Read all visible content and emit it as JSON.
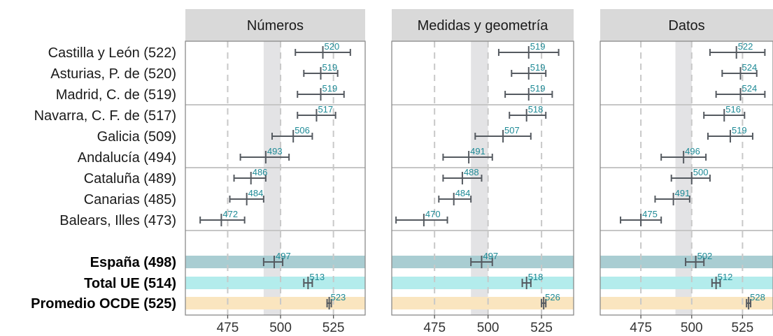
{
  "chart_data": {
    "type": "forest",
    "rows": [
      {
        "label": "Castilla y León (522)",
        "bold": false
      },
      {
        "label": "Asturias, P. de (520)",
        "bold": false
      },
      {
        "label": "Madrid, C. de (519)",
        "bold": false
      },
      {
        "label": "Navarra, C. F. de (517)",
        "bold": false
      },
      {
        "label": "Galicia (509)",
        "bold": false
      },
      {
        "label": "Andalucía (494)",
        "bold": false
      },
      {
        "label": "Cataluña (489)",
        "bold": false
      },
      {
        "label": "Canarias (485)",
        "bold": false
      },
      {
        "label": "Balears, Illes (473)",
        "bold": false
      },
      {
        "label": "España (498)",
        "bold": true,
        "band": "#a9cdd2"
      },
      {
        "label": "Total UE (514)",
        "bold": true,
        "band": "#b3ecec"
      },
      {
        "label": "Promedio OCDE (525)",
        "bold": true,
        "band": "#fae5bf"
      }
    ],
    "xlim": [
      455,
      540
    ],
    "xticks": [
      475,
      500,
      525
    ],
    "ref_band": [
      492,
      500
    ],
    "panels": [
      {
        "title": "Números",
        "points": [
          {
            "v": 520,
            "lo": 507,
            "hi": 533
          },
          {
            "v": 519,
            "lo": 511,
            "hi": 527
          },
          {
            "v": 519,
            "lo": 508,
            "hi": 530
          },
          {
            "v": 517,
            "lo": 508,
            "hi": 526
          },
          {
            "v": 506,
            "lo": 496,
            "hi": 515
          },
          {
            "v": 493,
            "lo": 481,
            "hi": 504
          },
          {
            "v": 486,
            "lo": 478,
            "hi": 493
          },
          {
            "v": 484,
            "lo": 476,
            "hi": 492
          },
          {
            "v": 472,
            "lo": 462,
            "hi": 483
          },
          {
            "v": 497,
            "lo": 492,
            "hi": 501
          },
          {
            "v": 513,
            "lo": 511,
            "hi": 515
          },
          {
            "v": 523,
            "lo": 522,
            "hi": 524
          }
        ]
      },
      {
        "title": "Medidas y geometría",
        "points": [
          {
            "v": 519,
            "lo": 505,
            "hi": 533
          },
          {
            "v": 519,
            "lo": 511,
            "hi": 527
          },
          {
            "v": 519,
            "lo": 508,
            "hi": 530
          },
          {
            "v": 518,
            "lo": 510,
            "hi": 527
          },
          {
            "v": 507,
            "lo": 494,
            "hi": 520
          },
          {
            "v": 491,
            "lo": 479,
            "hi": 502
          },
          {
            "v": 488,
            "lo": 479,
            "hi": 497
          },
          {
            "v": 484,
            "lo": 477,
            "hi": 492
          },
          {
            "v": 470,
            "lo": 457,
            "hi": 481
          },
          {
            "v": 497,
            "lo": 492,
            "hi": 502
          },
          {
            "v": 518,
            "lo": 516,
            "hi": 520
          },
          {
            "v": 526,
            "lo": 525,
            "hi": 527
          }
        ]
      },
      {
        "title": "Datos",
        "points": [
          {
            "v": 522,
            "lo": 509,
            "hi": 536
          },
          {
            "v": 524,
            "lo": 515,
            "hi": 532
          },
          {
            "v": 524,
            "lo": 512,
            "hi": 536
          },
          {
            "v": 516,
            "lo": 506,
            "hi": 526
          },
          {
            "v": 519,
            "lo": 508,
            "hi": 530
          },
          {
            "v": 496,
            "lo": 485,
            "hi": 507
          },
          {
            "v": 500,
            "lo": 490,
            "hi": 509
          },
          {
            "v": 491,
            "lo": 482,
            "hi": 499
          },
          {
            "v": 475,
            "lo": 465,
            "hi": 485
          },
          {
            "v": 502,
            "lo": 497,
            "hi": 506
          },
          {
            "v": 512,
            "lo": 510,
            "hi": 514
          },
          {
            "v": 528,
            "lo": 527,
            "hi": 529
          }
        ]
      }
    ]
  }
}
